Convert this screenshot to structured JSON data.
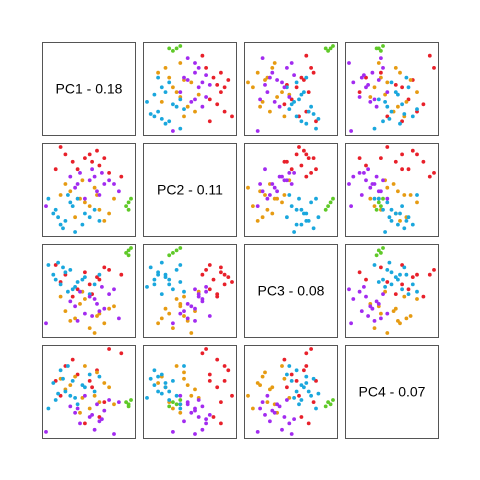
{
  "colors": {
    "red": "#e8202a",
    "orange": "#e69b12",
    "blue": "#1aa7dd",
    "purple": "#a22bf0",
    "green": "#5fc928",
    "frame": "#555555"
  },
  "chart_data": {
    "type": "scatter",
    "kind": "pairs-matrix",
    "variables": [
      "PC1",
      "PC2",
      "PC3",
      "PC4"
    ],
    "diagonal_labels": [
      "PC1 - 0.18",
      "PC2 - 0.11",
      "PC3 - 0.08",
      "PC4 - 0.07"
    ],
    "grid": false,
    "legend": "none",
    "groups": [
      {
        "color": "red",
        "points": [
          [
            0.02,
            0.1,
            0.0,
            0.05
          ],
          [
            0.05,
            0.11,
            0.03,
            0.1
          ],
          [
            0.0,
            0.09,
            0.05,
            -0.15
          ],
          [
            -0.05,
            0.08,
            -0.05,
            0.15
          ],
          [
            0.06,
            0.07,
            0.02,
            -0.12
          ],
          [
            -0.08,
            0.1,
            0.04,
            0.12
          ],
          [
            0.1,
            0.05,
            0.06,
            0.2
          ],
          [
            -0.03,
            0.06,
            -0.02,
            0.08
          ],
          [
            0.08,
            0.09,
            0.07,
            -0.05
          ],
          [
            -0.1,
            0.12,
            0.01,
            -0.02
          ],
          [
            0.15,
            0.04,
            0.04,
            0.18
          ],
          [
            0.03,
            0.08,
            -0.04,
            0.02
          ],
          [
            -0.12,
            0.06,
            0.08,
            0.05
          ]
        ]
      },
      {
        "color": "orange",
        "points": [
          [
            -0.02,
            -0.02,
            -0.08,
            -0.1
          ],
          [
            0.06,
            -0.05,
            -0.12,
            -0.05
          ],
          [
            -0.06,
            0.0,
            -0.15,
            0.03
          ],
          [
            0.02,
            -0.04,
            -0.18,
            -0.08
          ],
          [
            0.1,
            -0.06,
            -0.1,
            0.02
          ],
          [
            -0.1,
            -0.01,
            -0.05,
            0.06
          ],
          [
            0.04,
            0.01,
            -0.2,
            -0.02
          ],
          [
            -0.04,
            -0.07,
            -0.14,
            0.07
          ],
          [
            0.0,
            -0.03,
            -0.06,
            0.12
          ],
          [
            0.12,
            -0.02,
            -0.09,
            -0.06
          ],
          [
            -0.08,
            0.02,
            -0.11,
            0.01
          ],
          [
            0.08,
            -0.08,
            -0.16,
            0.04
          ],
          [
            -0.01,
            0.03,
            -0.03,
            -0.03
          ],
          [
            0.05,
            -0.01,
            -0.13,
            0.09
          ]
        ]
      },
      {
        "color": "blue",
        "points": [
          [
            -0.12,
            -0.05,
            0.02,
            -0.04
          ],
          [
            -0.08,
            -0.08,
            0.05,
            0.0
          ],
          [
            -0.05,
            -0.04,
            -0.02,
            0.05
          ],
          [
            -0.15,
            -0.02,
            0.08,
            -0.08
          ],
          [
            0.0,
            -0.06,
            0.03,
            0.02
          ],
          [
            -0.1,
            -0.09,
            0.0,
            0.1
          ],
          [
            -0.06,
            -0.03,
            0.06,
            -0.02
          ],
          [
            0.02,
            -0.07,
            -0.04,
            0.08
          ],
          [
            -0.13,
            -0.06,
            0.04,
            0.04
          ],
          [
            -0.03,
            -0.02,
            0.01,
            -0.06
          ],
          [
            -0.09,
            -0.1,
            0.07,
            0.06
          ],
          [
            0.04,
            -0.05,
            0.0,
            0.0
          ],
          [
            -0.07,
            -0.01,
            -0.03,
            0.12
          ],
          [
            -0.11,
            -0.07,
            0.09,
            -0.01
          ],
          [
            -0.01,
            -0.09,
            0.02,
            0.03
          ],
          [
            -0.04,
            -0.11,
            -0.01,
            -0.03
          ],
          [
            0.06,
            -0.08,
            0.04,
            0.07
          ]
        ]
      },
      {
        "color": "purple",
        "points": [
          [
            0.02,
            0.03,
            -0.05,
            -0.12
          ],
          [
            0.05,
            0.0,
            -0.08,
            -0.06
          ],
          [
            -0.02,
            0.05,
            -0.03,
            -0.15
          ],
          [
            0.08,
            0.02,
            -0.1,
            -0.09
          ],
          [
            0.0,
            -0.02,
            -0.12,
            -0.02
          ],
          [
            0.04,
            0.04,
            -0.06,
            -0.18
          ],
          [
            -0.04,
            0.01,
            -0.09,
            -0.1
          ],
          [
            0.1,
            0.03,
            -0.04,
            -0.04
          ],
          [
            0.06,
            -0.01,
            -0.11,
            -0.14
          ],
          [
            -0.06,
            0.04,
            -0.07,
            -0.07
          ],
          [
            0.12,
            0.02,
            -0.02,
            -0.2
          ],
          [
            0.03,
            0.06,
            -0.13,
            -0.11
          ],
          [
            0.14,
            0.0,
            -0.14,
            -0.05
          ],
          [
            -0.16,
            -0.04,
            -0.16,
            -0.19
          ],
          [
            0.07,
            0.05,
            -0.01,
            -0.13
          ],
          [
            -0.03,
            0.02,
            -0.15,
            -0.08
          ]
        ]
      },
      {
        "color": "green",
        "points": [
          [
            0.18,
            -0.03,
            0.14,
            -0.06
          ],
          [
            0.19,
            -0.02,
            0.15,
            -0.04
          ],
          [
            0.17,
            -0.04,
            0.13,
            -0.05
          ],
          [
            0.18,
            -0.05,
            0.12,
            -0.07
          ]
        ]
      }
    ]
  }
}
